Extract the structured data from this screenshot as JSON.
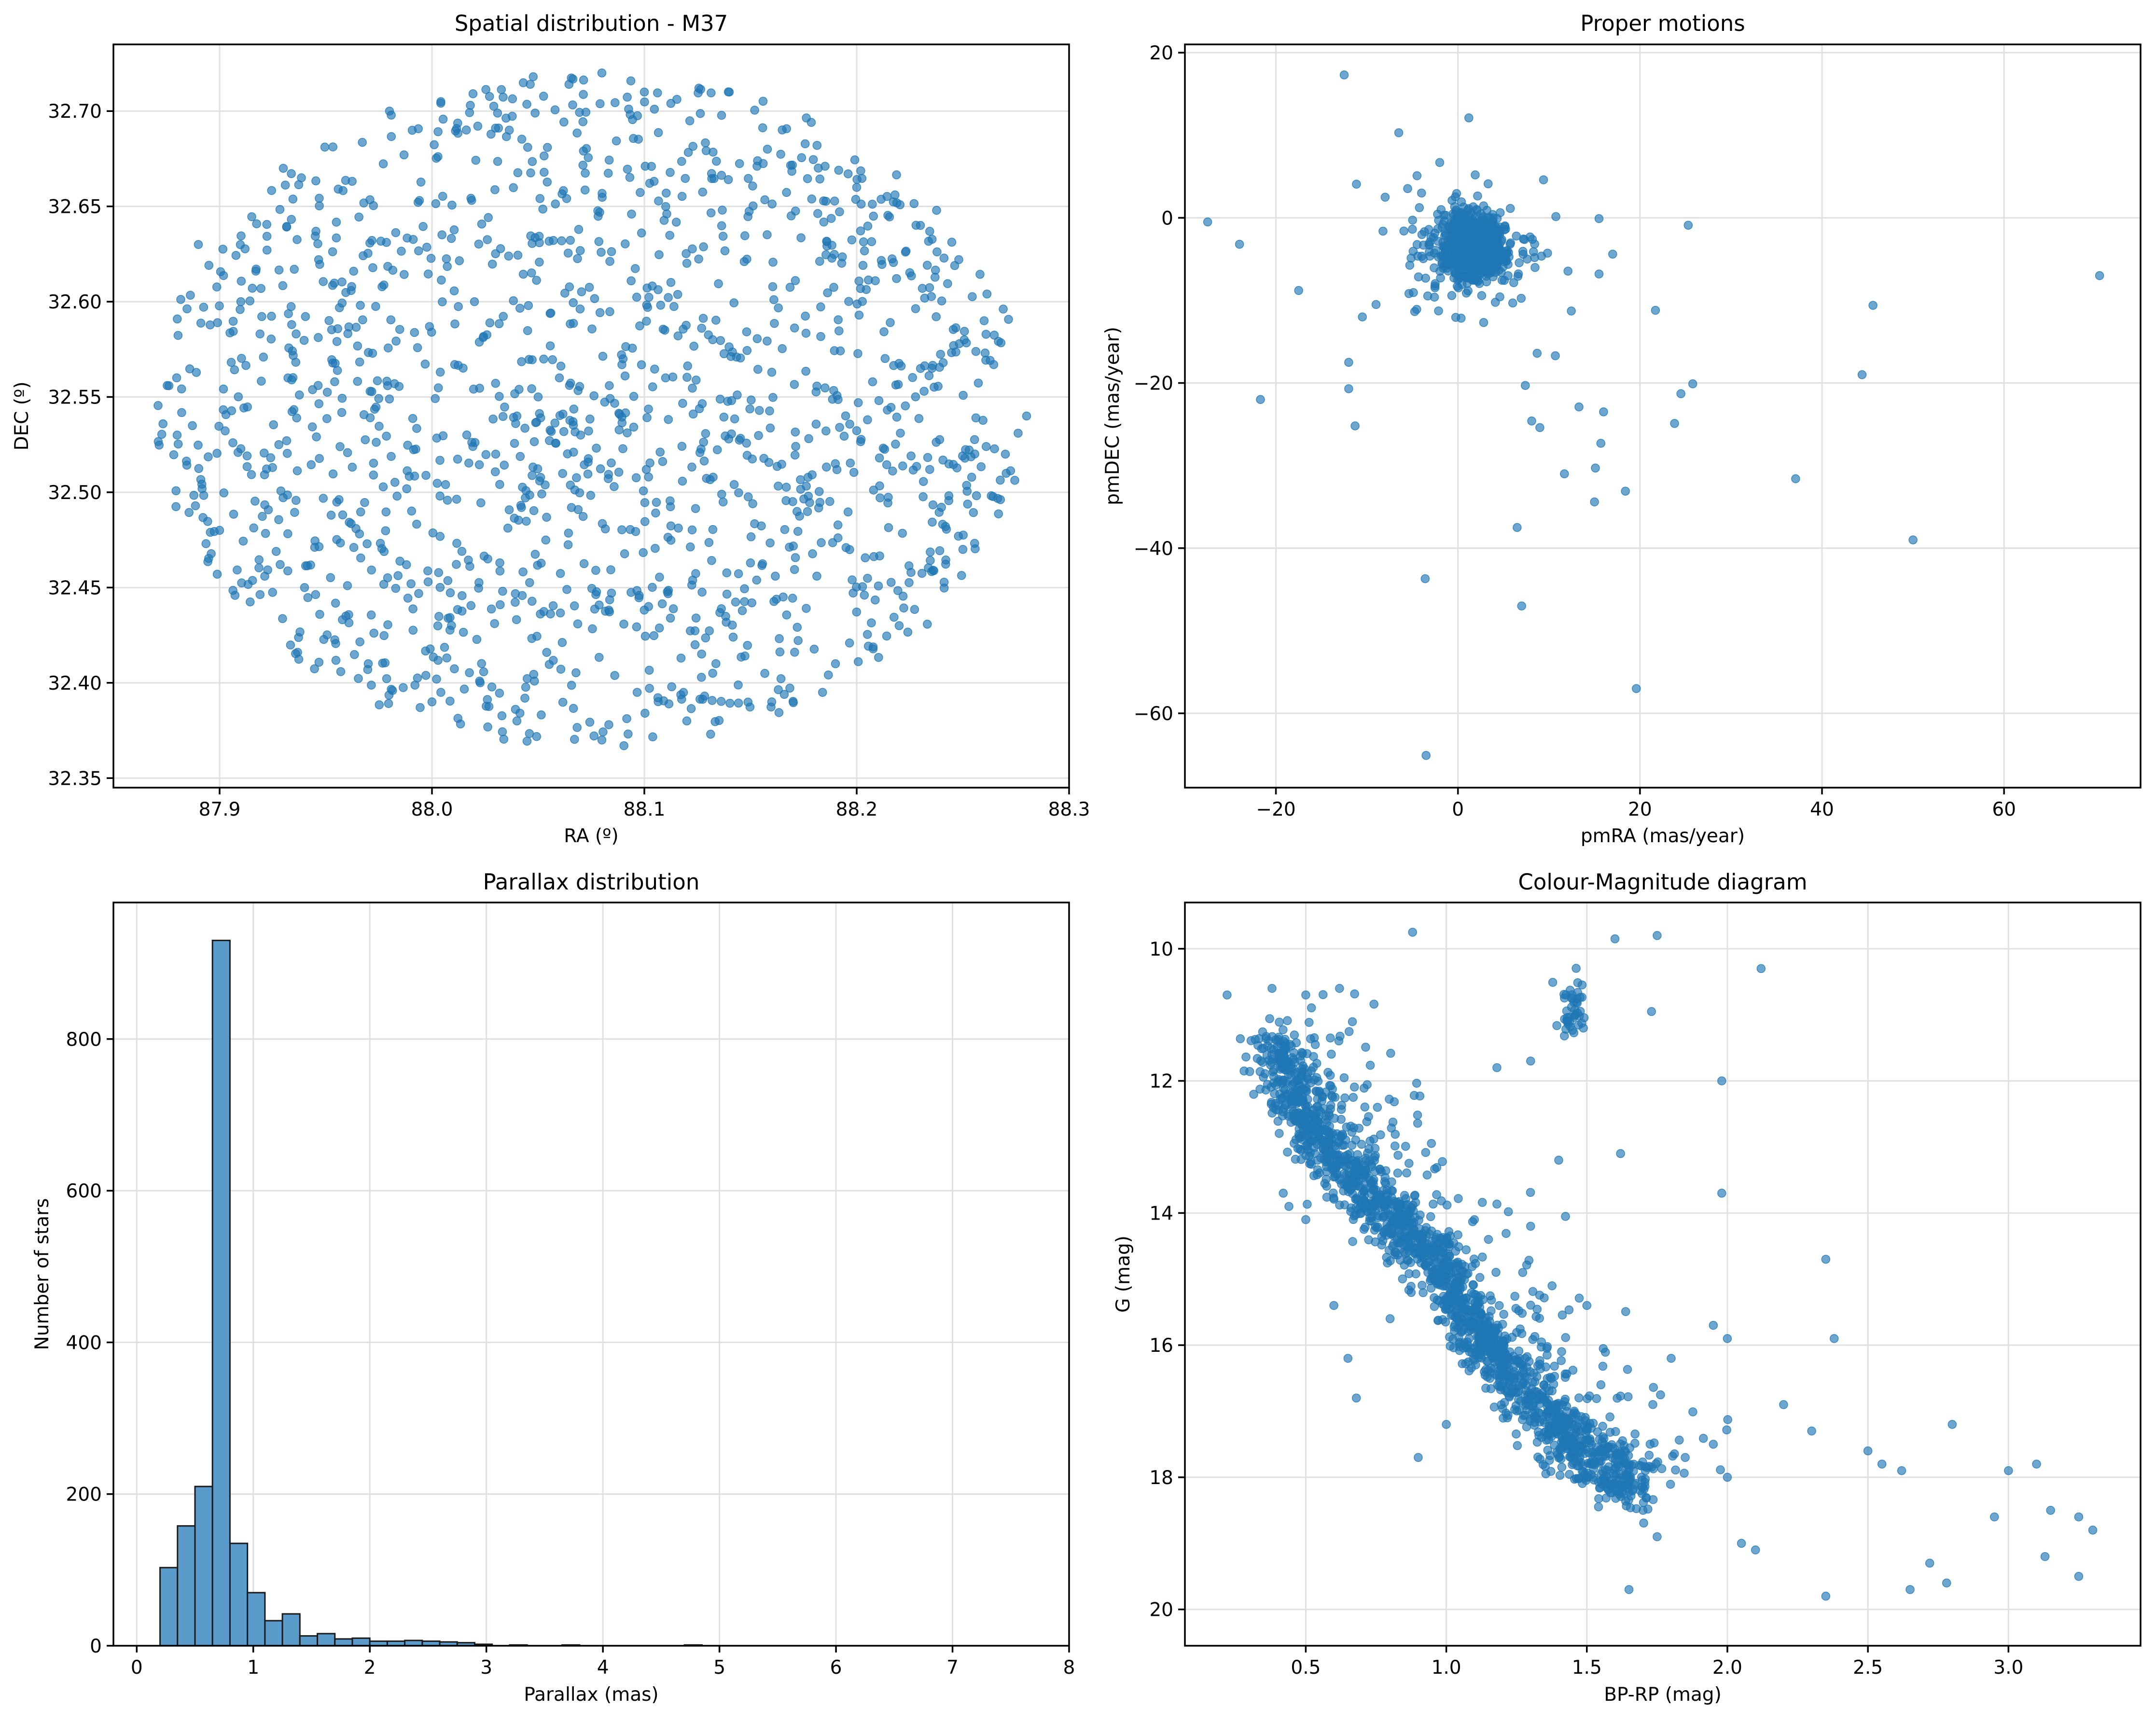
{
  "chart_data": [
    {
      "type": "scatter",
      "title": "Spatial distribution - M37",
      "xlabel": "RA (º)",
      "ylabel": "DEC (º)",
      "xlim": [
        87.85,
        88.3
      ],
      "ylim": [
        32.345,
        32.735
      ],
      "xticks": [
        {
          "value": 87.9,
          "label": "87.9"
        },
        {
          "value": 88.0,
          "label": "88.0"
        },
        {
          "value": 88.1,
          "label": "88.1"
        },
        {
          "value": 88.2,
          "label": "88.2"
        },
        {
          "value": 88.3,
          "label": "88.3"
        }
      ],
      "yticks": [
        {
          "value": 32.35,
          "label": "32.35"
        },
        {
          "value": 32.4,
          "label": "32.40"
        },
        {
          "value": 32.45,
          "label": "32.45"
        },
        {
          "value": 32.5,
          "label": "32.50"
        },
        {
          "value": 32.55,
          "label": "32.55"
        },
        {
          "value": 32.6,
          "label": "32.60"
        },
        {
          "value": 32.65,
          "label": "32.65"
        },
        {
          "value": 32.7,
          "label": "32.70"
        }
      ],
      "color": "#1f77b4",
      "grid": true,
      "description": "About 1500 stars uniformly filling an ellipse centred near RA 88.075, DEC 32.543 (RA half-width ~0.205, DEC half-width ~0.177)",
      "points": [
        [
          88.08,
          32.72
        ],
        [
          88.1,
          32.71
        ],
        [
          87.98,
          32.7
        ],
        [
          88.14,
          32.71
        ],
        [
          87.93,
          32.67
        ],
        [
          87.89,
          32.63
        ],
        [
          87.91,
          32.6
        ],
        [
          87.88,
          32.53
        ],
        [
          87.9,
          32.48
        ],
        [
          87.94,
          32.45
        ],
        [
          87.97,
          32.41
        ],
        [
          88.0,
          32.39
        ],
        [
          88.04,
          32.38
        ],
        [
          88.08,
          32.37
        ],
        [
          88.12,
          32.38
        ],
        [
          88.16,
          32.39
        ],
        [
          88.19,
          32.41
        ],
        [
          88.22,
          32.43
        ],
        [
          88.25,
          32.47
        ],
        [
          88.27,
          32.52
        ],
        [
          88.28,
          32.54
        ],
        [
          88.26,
          32.59
        ],
        [
          88.23,
          32.64
        ],
        [
          88.2,
          32.66
        ],
        [
          88.05,
          32.55
        ],
        [
          88.06,
          32.56
        ],
        [
          88.04,
          32.54
        ],
        [
          88.07,
          32.53
        ],
        [
          88.09,
          32.57
        ],
        [
          88.03,
          32.52
        ],
        [
          88.11,
          32.56
        ],
        [
          88.02,
          32.6
        ]
      ]
    },
    {
      "type": "scatter",
      "title": "Proper motions",
      "xlabel": "pmRA (mas/year)",
      "ylabel": "pmDEC (mas/year)",
      "xlim": [
        -30,
        75
      ],
      "ylim": [
        -69,
        21
      ],
      "xticks": [
        {
          "value": -20,
          "label": "−20"
        },
        {
          "value": 0,
          "label": "0"
        },
        {
          "value": 20,
          "label": "20"
        },
        {
          "value": 40,
          "label": "40"
        },
        {
          "value": 60,
          "label": "60"
        }
      ],
      "yticks": [
        {
          "value": -60,
          "label": "−60"
        },
        {
          "value": -40,
          "label": "−40"
        },
        {
          "value": -20,
          "label": "−20"
        },
        {
          "value": 0,
          "label": "0"
        },
        {
          "value": 20,
          "label": "20"
        }
      ],
      "color": "#1f77b4",
      "grid": true,
      "description": "Dense clump centred near pmRA 1.7, pmDEC -3.5 plus scattered outliers",
      "cluster_center": [
        1.7,
        -3.5
      ],
      "points": [
        [
          -12.5,
          17.3
        ],
        [
          -6.5,
          10.3
        ],
        [
          1.2,
          12.1
        ],
        [
          -27.5,
          -0.5
        ],
        [
          -24,
          -3.2
        ],
        [
          -17.5,
          -8.8
        ],
        [
          -21.7,
          -22
        ],
        [
          -12,
          -17.5
        ],
        [
          -12,
          -20.7
        ],
        [
          -11.3,
          -25.2
        ],
        [
          -3.6,
          -43.7
        ],
        [
          -3.5,
          -65.1
        ],
        [
          6.5,
          -37.5
        ],
        [
          7,
          -47
        ],
        [
          19.6,
          -57
        ],
        [
          15.5,
          -0.1
        ],
        [
          15.5,
          -6.8
        ],
        [
          25.3,
          -0.9
        ],
        [
          21.7,
          -11.2
        ],
        [
          24.5,
          -21.3
        ],
        [
          25.8,
          -20.1
        ],
        [
          23.8,
          -24.9
        ],
        [
          15.7,
          -27.3
        ],
        [
          15.1,
          -30.3
        ],
        [
          15,
          -34.4
        ],
        [
          18.4,
          -33.1
        ],
        [
          11.7,
          -31
        ],
        [
          13.3,
          -22.9
        ],
        [
          16,
          -23.5
        ],
        [
          17,
          -4.4
        ],
        [
          37.1,
          -31.6
        ],
        [
          44.4,
          -19
        ],
        [
          45.6,
          -10.6
        ],
        [
          50,
          -39
        ],
        [
          70.5,
          -7
        ],
        [
          8.1,
          -24.6
        ],
        [
          9,
          -25.4
        ],
        [
          8.7,
          -16.4
        ],
        [
          10.7,
          -16.7
        ],
        [
          7.4,
          -20.3
        ],
        [
          -9,
          -10.5
        ],
        [
          -10.5,
          -12
        ],
        [
          9.4,
          4.6
        ],
        [
          -4.5,
          5.1
        ],
        [
          -2,
          6.7
        ],
        [
          1.9,
          5.2
        ],
        [
          -4,
          3
        ],
        [
          -8,
          2.5
        ]
      ]
    },
    {
      "type": "bar",
      "title": "Parallax distribution",
      "xlabel": "Parallax (mas)",
      "ylabel": "Number of stars",
      "xlim": [
        -0.2,
        8.0
      ],
      "ylim": [
        0,
        980
      ],
      "bin_start": 0.2,
      "bin_width": 0.15,
      "values": [
        103,
        158,
        210,
        930,
        135,
        70,
        33,
        42,
        13,
        16,
        9,
        10,
        6,
        6,
        7,
        6,
        5,
        4,
        2,
        0,
        1,
        0,
        0,
        1,
        0,
        0,
        0,
        0,
        0,
        0,
        1,
        0,
        0,
        0,
        0,
        0,
        0,
        0,
        0,
        0,
        0,
        0,
        0,
        0,
        0,
        0,
        0,
        0,
        0,
        0,
        0
      ],
      "xticks": [
        {
          "value": 0,
          "label": "0"
        },
        {
          "value": 1,
          "label": "1"
        },
        {
          "value": 2,
          "label": "2"
        },
        {
          "value": 3,
          "label": "3"
        },
        {
          "value": 4,
          "label": "4"
        },
        {
          "value": 5,
          "label": "5"
        },
        {
          "value": 6,
          "label": "6"
        },
        {
          "value": 7,
          "label": "7"
        },
        {
          "value": 8,
          "label": "8"
        }
      ],
      "yticks": [
        {
          "value": 0,
          "label": "0"
        },
        {
          "value": 200,
          "label": "200"
        },
        {
          "value": 400,
          "label": "400"
        },
        {
          "value": 600,
          "label": "600"
        },
        {
          "value": 800,
          "label": "800"
        }
      ],
      "color": "#5a9bcb",
      "edge_color": "#1a1a1a",
      "grid": true
    },
    {
      "type": "scatter",
      "title": "Colour-Magnitude diagram",
      "xlabel": "BP-RP (mag)",
      "ylabel": "G (mag)",
      "xlim": [
        0.07,
        3.47
      ],
      "ylim": [
        20.55,
        9.3
      ],
      "y_inverted": true,
      "xticks": [
        {
          "value": 0.5,
          "label": "0.5"
        },
        {
          "value": 1.0,
          "label": "1.0"
        },
        {
          "value": 1.5,
          "label": "1.5"
        },
        {
          "value": 2.0,
          "label": "2.0"
        },
        {
          "value": 2.5,
          "label": "2.5"
        },
        {
          "value": 3.0,
          "label": "3.0"
        }
      ],
      "yticks": [
        {
          "value": 10,
          "label": "10"
        },
        {
          "value": 12,
          "label": "12"
        },
        {
          "value": 14,
          "label": "14"
        },
        {
          "value": 16,
          "label": "16"
        },
        {
          "value": 18,
          "label": "18"
        },
        {
          "value": 20,
          "label": "20"
        }
      ],
      "color": "#1f77b4",
      "grid": true,
      "description": "Main sequence running from (0.4, 11.3) to (1.7, 18.2) with a red-clump group near (1.45, 10.9) and a faint red tail",
      "main_sequence": [
        [
          0.38,
          11.3
        ],
        [
          0.45,
          12.2
        ],
        [
          0.55,
          12.9
        ],
        [
          0.7,
          13.6
        ],
        [
          0.85,
          14.3
        ],
        [
          1.0,
          15.0
        ],
        [
          1.1,
          15.7
        ],
        [
          1.2,
          16.3
        ],
        [
          1.35,
          17.1
        ],
        [
          1.5,
          17.7
        ],
        [
          1.7,
          18.2
        ]
      ],
      "clump": [
        1.45,
        10.95
      ],
      "points": [
        [
          0.22,
          10.7
        ],
        [
          0.38,
          10.6
        ],
        [
          0.5,
          10.7
        ],
        [
          0.62,
          10.6
        ],
        [
          0.88,
          9.75
        ],
        [
          1.6,
          9.85
        ],
        [
          1.75,
          9.8
        ],
        [
          2.12,
          10.3
        ],
        [
          1.73,
          10.95
        ],
        [
          1.3,
          11.7
        ],
        [
          1.18,
          11.8
        ],
        [
          1.98,
          12.0
        ],
        [
          1.4,
          13.2
        ],
        [
          1.62,
          13.1
        ],
        [
          1.98,
          13.7
        ],
        [
          2.35,
          14.7
        ],
        [
          2.38,
          15.9
        ],
        [
          2.0,
          15.9
        ],
        [
          1.95,
          15.7
        ],
        [
          2.2,
          16.9
        ],
        [
          2.3,
          17.3
        ],
        [
          2.5,
          17.6
        ],
        [
          2.55,
          17.8
        ],
        [
          2.62,
          17.9
        ],
        [
          2.8,
          17.2
        ],
        [
          2.95,
          18.6
        ],
        [
          3.0,
          17.9
        ],
        [
          3.1,
          17.8
        ],
        [
          3.15,
          18.5
        ],
        [
          3.25,
          18.6
        ],
        [
          3.3,
          18.8
        ],
        [
          3.25,
          19.5
        ],
        [
          3.13,
          19.2
        ],
        [
          2.78,
          19.6
        ],
        [
          2.72,
          19.3
        ],
        [
          2.65,
          19.7
        ],
        [
          2.35,
          19.8
        ],
        [
          1.65,
          19.7
        ],
        [
          2.05,
          19.0
        ],
        [
          2.1,
          19.1
        ],
        [
          0.42,
          13.7
        ],
        [
          0.44,
          13.9
        ],
        [
          0.5,
          14.1
        ],
        [
          0.6,
          15.4
        ],
        [
          0.65,
          16.2
        ],
        [
          0.68,
          16.8
        ],
        [
          0.9,
          17.7
        ],
        [
          1.0,
          17.2
        ],
        [
          0.8,
          15.6
        ],
        [
          1.1,
          14.1
        ],
        [
          1.15,
          14.4
        ],
        [
          1.3,
          14.2
        ],
        [
          1.5,
          15.4
        ],
        [
          1.55,
          16.6
        ],
        [
          1.8,
          16.2
        ],
        [
          1.85,
          17.7
        ],
        [
          1.95,
          17.5
        ],
        [
          2.0,
          18.0
        ],
        [
          1.6,
          18.1
        ],
        [
          1.7,
          18.5
        ],
        [
          1.75,
          18.9
        ]
      ]
    }
  ]
}
